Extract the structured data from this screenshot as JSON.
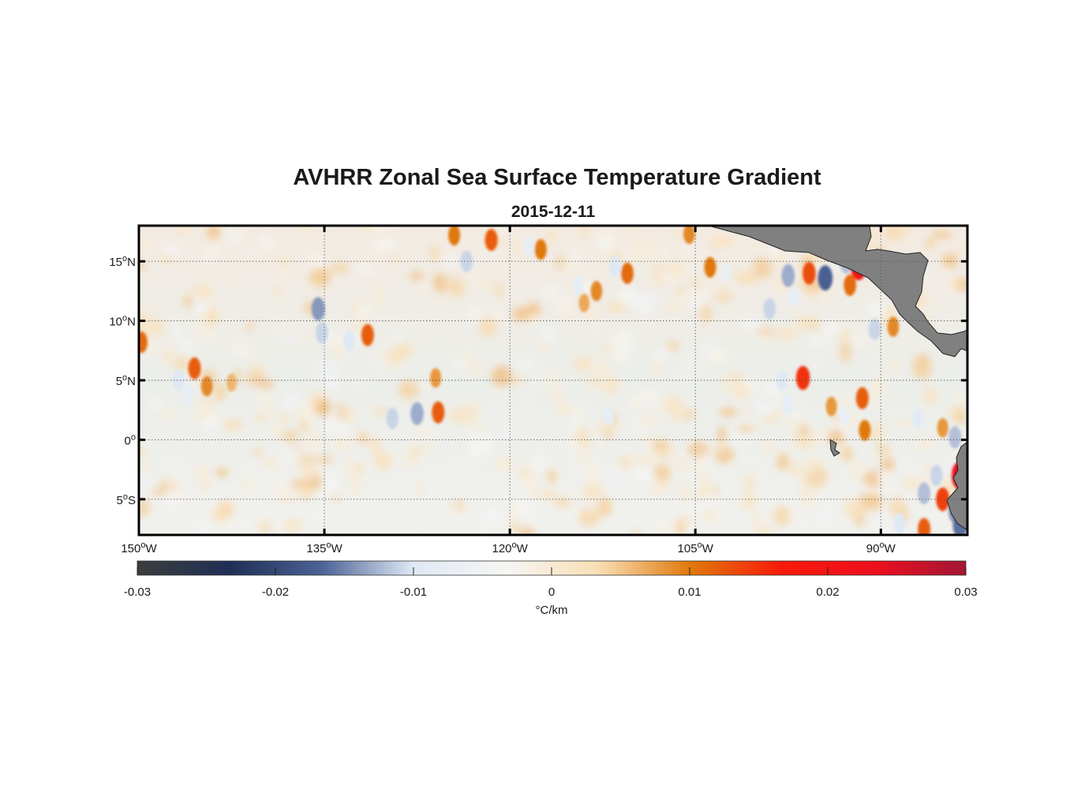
{
  "title": "AVHRR Zonal Sea Surface Temperature Gradient",
  "subtitle": "2015-12-11",
  "map": {
    "lon_range": [
      -150,
      -83
    ],
    "lat_range": [
      -8,
      18
    ],
    "lon_ticks": [
      {
        "value": -150,
        "num": "150",
        "hem": "W"
      },
      {
        "value": -135,
        "num": "135",
        "hem": "W"
      },
      {
        "value": -120,
        "num": "120",
        "hem": "W"
      },
      {
        "value": -105,
        "num": "105",
        "hem": "W"
      },
      {
        "value": -90,
        "num": "90",
        "hem": "W"
      }
    ],
    "lat_ticks": [
      {
        "value": 15,
        "num": "15",
        "hem": "N"
      },
      {
        "value": 10,
        "num": "10",
        "hem": "N"
      },
      {
        "value": 5,
        "num": "5",
        "hem": "N"
      },
      {
        "value": 0,
        "num": "0",
        "hem": ""
      },
      {
        "value": -5,
        "num": "5",
        "hem": "S"
      }
    ],
    "degree_symbol": "o",
    "grid": true,
    "land_color": "#808080",
    "features": [
      {
        "lon": -149.8,
        "lat": 8.2,
        "v": 0.011
      },
      {
        "lon": -145.5,
        "lat": 6.0,
        "v": 0.012
      },
      {
        "lon": -146.8,
        "lat": 5.0,
        "v": -0.01
      },
      {
        "lon": -144.5,
        "lat": 4.5,
        "v": 0.009
      },
      {
        "lon": -146.0,
        "lat": 3.8,
        "v": -0.008
      },
      {
        "lon": -142.5,
        "lat": 4.8,
        "v": 0.006
      },
      {
        "lon": -135.5,
        "lat": 11.0,
        "v": -0.014
      },
      {
        "lon": -135.2,
        "lat": 9.0,
        "v": -0.011
      },
      {
        "lon": -133.0,
        "lat": 8.3,
        "v": -0.01
      },
      {
        "lon": -131.5,
        "lat": 8.8,
        "v": 0.012
      },
      {
        "lon": -127.5,
        "lat": 2.2,
        "v": -0.013
      },
      {
        "lon": -129.5,
        "lat": 1.8,
        "v": -0.011
      },
      {
        "lon": -125.8,
        "lat": 2.3,
        "v": 0.012
      },
      {
        "lon": -126.0,
        "lat": 5.2,
        "v": 0.008
      },
      {
        "lon": -124.5,
        "lat": 17.2,
        "v": 0.01
      },
      {
        "lon": -121.5,
        "lat": 16.8,
        "v": 0.012
      },
      {
        "lon": -123.5,
        "lat": 15.0,
        "v": -0.011
      },
      {
        "lon": -117.5,
        "lat": 16.0,
        "v": 0.01
      },
      {
        "lon": -118.5,
        "lat": 16.3,
        "v": -0.008
      },
      {
        "lon": -114.0,
        "lat": 11.5,
        "v": 0.007
      },
      {
        "lon": -114.5,
        "lat": 13.0,
        "v": -0.008
      },
      {
        "lon": -113.0,
        "lat": 12.5,
        "v": 0.009
      },
      {
        "lon": -111.5,
        "lat": 14.6,
        "v": -0.01
      },
      {
        "lon": -110.5,
        "lat": 14.0,
        "v": 0.011
      },
      {
        "lon": -112.0,
        "lat": 2.0,
        "v": -0.008
      },
      {
        "lon": -105.5,
        "lat": 17.3,
        "v": 0.009
      },
      {
        "lon": -103.8,
        "lat": 14.5,
        "v": 0.01
      },
      {
        "lon": -102.5,
        "lat": 14.0,
        "v": -0.007
      },
      {
        "lon": -97.5,
        "lat": 13.8,
        "v": -0.013
      },
      {
        "lon": -95.8,
        "lat": 14.0,
        "v": 0.013
      },
      {
        "lon": -94.5,
        "lat": 13.6,
        "v": -0.017
      },
      {
        "lon": -92.8,
        "lat": 14.9,
        "v": -0.012
      },
      {
        "lon": -91.8,
        "lat": 14.6,
        "v": 0.021
      },
      {
        "lon": -92.5,
        "lat": 13.0,
        "v": 0.011
      },
      {
        "lon": -99.0,
        "lat": 11.0,
        "v": -0.011
      },
      {
        "lon": -97.0,
        "lat": 12.0,
        "v": -0.008
      },
      {
        "lon": -90.5,
        "lat": 9.3,
        "v": -0.011
      },
      {
        "lon": -89.0,
        "lat": 9.5,
        "v": 0.009
      },
      {
        "lon": -98.0,
        "lat": 5.0,
        "v": -0.01
      },
      {
        "lon": -96.3,
        "lat": 5.2,
        "v": 0.015
      },
      {
        "lon": -97.5,
        "lat": 3.0,
        "v": -0.008
      },
      {
        "lon": -94.0,
        "lat": 2.8,
        "v": 0.008
      },
      {
        "lon": -91.5,
        "lat": 3.5,
        "v": 0.012
      },
      {
        "lon": -91.3,
        "lat": 0.8,
        "v": 0.01
      },
      {
        "lon": -93.0,
        "lat": 2.0,
        "v": -0.007
      },
      {
        "lon": -87.0,
        "lat": 1.8,
        "v": -0.009
      },
      {
        "lon": -85.0,
        "lat": 1.0,
        "v": 0.008
      },
      {
        "lon": -84.0,
        "lat": 0.2,
        "v": -0.012
      },
      {
        "lon": -85.5,
        "lat": -3.0,
        "v": -0.011
      },
      {
        "lon": -86.5,
        "lat": -4.5,
        "v": -0.012
      },
      {
        "lon": -84.0,
        "lat": -6.0,
        "v": -0.014
      },
      {
        "lon": -83.6,
        "lat": -3.0,
        "v": 0.022
      },
      {
        "lon": -85.0,
        "lat": -5.0,
        "v": 0.014
      },
      {
        "lon": -88.5,
        "lat": -7.0,
        "v": -0.01
      },
      {
        "lon": -86.5,
        "lat": -7.5,
        "v": 0.012
      },
      {
        "lon": -83.6,
        "lat": -7.2,
        "v": -0.016
      }
    ]
  },
  "colorbar": {
    "min": -0.03,
    "max": 0.03,
    "tick_values": [
      -0.03,
      -0.02,
      -0.01,
      0,
      0.01,
      0.02,
      0.03
    ],
    "tick_labels": [
      "-0.03",
      "-0.02",
      "-0.01",
      "0",
      "0.01",
      "0.02",
      "0.03"
    ],
    "label": "°C/km",
    "colors": [
      "#3d3d3d",
      "#1f2f55",
      "#4b6296",
      "#dfe9f4",
      "#f6f6f4",
      "#f9dfb6",
      "#e0790b",
      "#f71a0a",
      "#ee0f1e",
      "#a21634"
    ]
  }
}
